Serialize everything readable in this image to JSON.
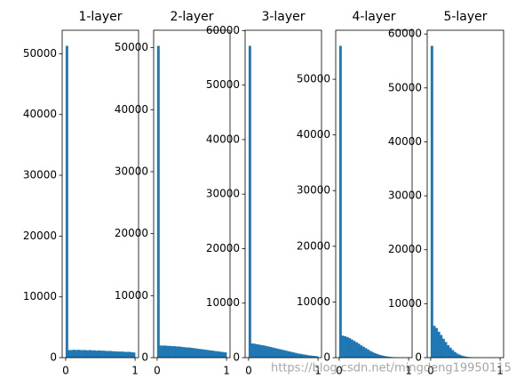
{
  "chart_data": [
    {
      "type": "histogram",
      "title": "1-layer",
      "color": "#1f77b4",
      "bins": [
        0,
        0.0333,
        0.0667,
        0.1,
        0.1333,
        0.1667,
        0.2,
        0.2333,
        0.2667,
        0.3,
        0.3333,
        0.3667,
        0.4,
        0.4333,
        0.4667,
        0.5,
        0.5333,
        0.5667,
        0.6,
        0.6333,
        0.6667,
        0.7,
        0.7333,
        0.7667,
        0.8,
        0.8333,
        0.8667,
        0.9,
        0.9333,
        0.9667,
        1
      ],
      "values": [
        51300,
        1250,
        1250,
        1300,
        1250,
        1300,
        1250,
        1250,
        1250,
        1200,
        1250,
        1200,
        1200,
        1150,
        1200,
        1150,
        1150,
        1100,
        1100,
        1100,
        1050,
        1050,
        1000,
        1000,
        1000,
        950,
        950,
        950,
        900,
        850
      ],
      "xlim": [
        -0.05,
        1.05
      ],
      "xticks": [
        0,
        1
      ],
      "ylim": [
        0,
        53865
      ],
      "yticks": [
        0,
        10000,
        20000,
        30000,
        40000,
        50000
      ]
    },
    {
      "type": "histogram",
      "title": "2-layer",
      "color": "#1f77b4",
      "bins": [
        0,
        0.0333,
        0.0667,
        0.1,
        0.1333,
        0.1667,
        0.2,
        0.2333,
        0.2667,
        0.3,
        0.3333,
        0.3667,
        0.4,
        0.4333,
        0.4667,
        0.5,
        0.5333,
        0.5667,
        0.6,
        0.6333,
        0.6667,
        0.7,
        0.7333,
        0.7667,
        0.8,
        0.8333,
        0.8667,
        0.9,
        0.9333,
        0.9667,
        1
      ],
      "values": [
        50300,
        1950,
        1950,
        1950,
        1900,
        1900,
        1850,
        1850,
        1800,
        1800,
        1750,
        1700,
        1650,
        1650,
        1600,
        1550,
        1500,
        1450,
        1400,
        1350,
        1300,
        1250,
        1200,
        1150,
        1100,
        1050,
        1000,
        950,
        900,
        850
      ],
      "xlim": [
        -0.05,
        1.05
      ],
      "xticks": [
        0,
        1
      ],
      "ylim": [
        0,
        52815
      ],
      "yticks": [
        0,
        10000,
        20000,
        30000,
        40000,
        50000
      ]
    },
    {
      "type": "histogram",
      "title": "3-layer",
      "color": "#1f77b4",
      "bins": [
        0,
        0.0333,
        0.0667,
        0.1,
        0.1333,
        0.1667,
        0.2,
        0.2333,
        0.2667,
        0.3,
        0.3333,
        0.3667,
        0.4,
        0.4333,
        0.4667,
        0.5,
        0.5333,
        0.5667,
        0.6,
        0.6333,
        0.6667,
        0.7,
        0.7333,
        0.7667,
        0.8,
        0.8333,
        0.8667,
        0.9,
        0.9333,
        0.9667,
        1
      ],
      "values": [
        57200,
        2600,
        2550,
        2450,
        2400,
        2300,
        2250,
        2150,
        2050,
        1950,
        1850,
        1750,
        1650,
        1550,
        1450,
        1350,
        1250,
        1150,
        1050,
        950,
        850,
        750,
        700,
        600,
        550,
        450,
        400,
        350,
        300,
        250
      ],
      "xlim": [
        -0.05,
        1.05
      ],
      "xticks": [
        0,
        1
      ],
      "ylim": [
        0,
        60060
      ],
      "yticks": [
        0,
        10000,
        20000,
        30000,
        40000,
        50000,
        60000
      ]
    },
    {
      "type": "histogram",
      "title": "4-layer",
      "color": "#1f77b4",
      "bins": [
        0,
        0.0333,
        0.0667,
        0.1,
        0.1333,
        0.1667,
        0.2,
        0.2333,
        0.2667,
        0.3,
        0.3333,
        0.3667,
        0.4,
        0.4333,
        0.4667,
        0.5,
        0.5333,
        0.5667,
        0.6,
        0.6333,
        0.6667,
        0.7,
        0.7333,
        0.7667,
        0.8,
        0.8333,
        0.8667,
        0.9,
        0.9333,
        0.9667,
        1
      ],
      "values": [
        56000,
        3950,
        3850,
        3700,
        3500,
        3250,
        3000,
        2750,
        2500,
        2200,
        1950,
        1700,
        1450,
        1200,
        1000,
        800,
        650,
        500,
        400,
        300,
        220,
        160,
        110,
        80,
        50,
        30,
        20,
        10,
        5,
        2
      ],
      "xlim": [
        -0.05,
        1.05
      ],
      "xticks": [
        0,
        1
      ],
      "ylim": [
        0,
        58800
      ],
      "yticks": [
        0,
        10000,
        20000,
        30000,
        40000,
        50000
      ]
    },
    {
      "type": "histogram",
      "title": "5-layer",
      "color": "#1f77b4",
      "bins": [
        0,
        0.0333,
        0.0667,
        0.1,
        0.1333,
        0.1667,
        0.2,
        0.2333,
        0.2667,
        0.3,
        0.3333,
        0.3667,
        0.4,
        0.4333,
        0.4667,
        0.5,
        0.5333,
        0.5667,
        0.6,
        0.6333,
        0.6667,
        0.7,
        0.7333,
        0.7667,
        0.8,
        0.8333,
        0.8667,
        0.9,
        0.9333,
        0.9667,
        1
      ],
      "values": [
        57800,
        5900,
        5500,
        4800,
        4200,
        3500,
        2900,
        2300,
        1850,
        1400,
        1050,
        750,
        550,
        380,
        260,
        170,
        110,
        70,
        45,
        30,
        18,
        10,
        6,
        3,
        2,
        1,
        1,
        0,
        0,
        0
      ],
      "xlim": [
        -0.05,
        1.05
      ],
      "xticks": [
        0,
        1
      ],
      "ylim": [
        0,
        60690
      ],
      "yticks": [
        0,
        10000,
        20000,
        30000,
        40000,
        50000,
        60000
      ]
    }
  ],
  "watermark": "https://blog.csdn.net/mingdeng19950115"
}
